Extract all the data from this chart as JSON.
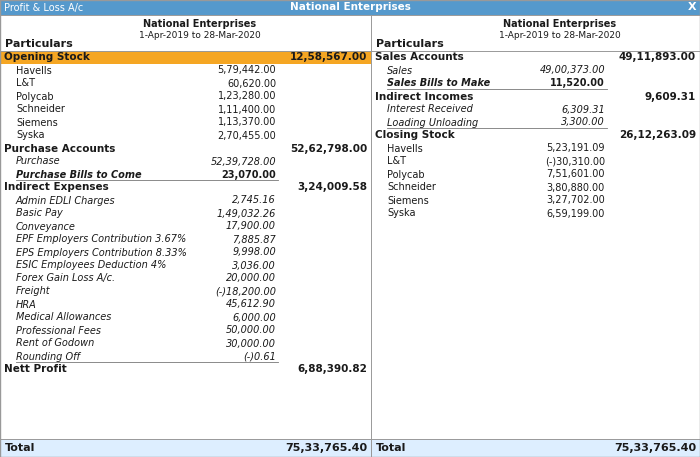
{
  "title_bar_text": "National Enterprises",
  "title_bar_left": "Profit & Loss A/c",
  "title_bar_right": "X",
  "title_bar_color": "#5599cc",
  "header_company": "National Enterprises",
  "header_period": "1-Apr-2019 to 28-Mar-2020",
  "left_section": {
    "header_particulars": "Particulars",
    "rows": [
      {
        "type": "section_header",
        "label": "Opening Stock",
        "value": "12,58,567.00",
        "bg": "#f5a623"
      },
      {
        "type": "subitem",
        "label": "Havells",
        "value": "5,79,442.00"
      },
      {
        "type": "subitem",
        "label": "L&T",
        "value": "60,620.00"
      },
      {
        "type": "subitem",
        "label": "Polycab",
        "value": "1,23,280.00"
      },
      {
        "type": "subitem",
        "label": "Schneider",
        "value": "1,11,400.00"
      },
      {
        "type": "subitem",
        "label": "Siemens",
        "value": "1,13,370.00"
      },
      {
        "type": "subitem",
        "label": "Syska",
        "value": "2,70,455.00"
      },
      {
        "type": "section_header_bold",
        "label": "Purchase Accounts",
        "value": "52,62,798.00"
      },
      {
        "type": "subitem_italic",
        "label": "Purchase",
        "value": "52,39,728.00"
      },
      {
        "type": "subitem_italic_bold",
        "label": "Purchase Bills to Come",
        "value": "23,070.00",
        "underline": true
      },
      {
        "type": "section_header_bold",
        "label": "Indirect Expenses",
        "value": "3,24,009.58"
      },
      {
        "type": "subitem_italic",
        "label": "Admin EDLI Charges",
        "value": "2,745.16"
      },
      {
        "type": "subitem_italic",
        "label": "Basic Pay",
        "value": "1,49,032.26"
      },
      {
        "type": "subitem_italic",
        "label": "Conveyance",
        "value": "17,900.00"
      },
      {
        "type": "subitem_italic",
        "label": "EPF Employers Contribution 3.67%",
        "value": "7,885.87"
      },
      {
        "type": "subitem_italic",
        "label": "EPS Employers Contribution 8.33%",
        "value": "9,998.00"
      },
      {
        "type": "subitem_italic",
        "label": "ESIC Employees Deduction 4%",
        "value": "3,036.00"
      },
      {
        "type": "subitem_italic",
        "label": "Forex Gain Loss A/c.",
        "value": "20,000.00"
      },
      {
        "type": "subitem_italic",
        "label": "Freight",
        "value": "(-)18,200.00"
      },
      {
        "type": "subitem_italic",
        "label": "HRA",
        "value": "45,612.90"
      },
      {
        "type": "subitem_italic",
        "label": "Medical Allowances",
        "value": "6,000.00"
      },
      {
        "type": "subitem_italic",
        "label": "Professional Fees",
        "value": "50,000.00"
      },
      {
        "type": "subitem_italic",
        "label": "Rent of Godown",
        "value": "30,000.00"
      },
      {
        "type": "subitem_italic",
        "label": "Rounding Off",
        "value": "(-)0.61",
        "underline": true
      },
      {
        "type": "section_header_bold",
        "label": "Nett Profit",
        "value": "6,88,390.82"
      }
    ],
    "footer_label": "Total",
    "footer_value": "75,33,765.40"
  },
  "right_section": {
    "header_particulars": "Particulars",
    "rows": [
      {
        "type": "section_header_bold",
        "label": "Sales Accounts",
        "value": "49,11,893.00"
      },
      {
        "type": "subitem_italic",
        "label": "Sales",
        "value": "49,00,373.00"
      },
      {
        "type": "subitem_italic_bold",
        "label": "Sales Bills to Make",
        "value": "11,520.00",
        "underline": true
      },
      {
        "type": "section_header_bold",
        "label": "Indirect Incomes",
        "value": "9,609.31"
      },
      {
        "type": "subitem_italic",
        "label": "Interest Received",
        "value": "6,309.31"
      },
      {
        "type": "subitem_italic",
        "label": "Loading Unloading",
        "value": "3,300.00",
        "underline": true
      },
      {
        "type": "section_header_bold",
        "label": "Closing Stock",
        "value": "26,12,263.09"
      },
      {
        "type": "subitem",
        "label": "Havells",
        "value": "5,23,191.09"
      },
      {
        "type": "subitem",
        "label": "L&T",
        "value": "(-)30,310.00"
      },
      {
        "type": "subitem",
        "label": "Polycab",
        "value": "7,51,601.00"
      },
      {
        "type": "subitem",
        "label": "Schneider",
        "value": "3,80,880.00"
      },
      {
        "type": "subitem",
        "label": "Siemens",
        "value": "3,27,702.00"
      },
      {
        "type": "subitem",
        "label": "Syska",
        "value": "6,59,199.00"
      }
    ],
    "footer_label": "Total",
    "footer_value": "75,33,765.40"
  },
  "bg_color": "#ffffff",
  "section_header_color": "#f5a623",
  "border_color": "#999999",
  "text_color": "#1a1a1a",
  "title_text_color": "#ffffff",
  "footer_bg": "#ddeeff"
}
